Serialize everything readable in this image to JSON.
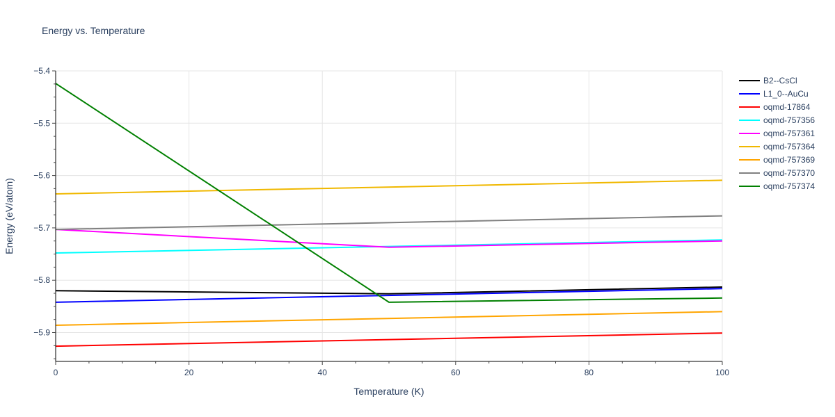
{
  "chart_data": {
    "type": "line",
    "title": "Energy vs. Temperature",
    "xlabel": "Temperature (K)",
    "ylabel": "Energy (eV/atom)",
    "xlim": [
      0,
      100
    ],
    "ylim": [
      -5.955,
      -5.4
    ],
    "x_ticks": [
      0,
      20,
      40,
      60,
      80,
      100
    ],
    "y_ticks": [
      -5.4,
      -5.5,
      -5.6,
      -5.7,
      -5.8,
      -5.9
    ],
    "x_tick_labels": [
      "0",
      "20",
      "40",
      "60",
      "80",
      "100"
    ],
    "y_tick_labels": [
      "−5.4",
      "−5.5",
      "−5.6",
      "−5.7",
      "−5.8",
      "−5.9"
    ],
    "grid": true,
    "legend_position": "right",
    "series": [
      {
        "name": "B2--CsCl",
        "color": "#000000",
        "x": [
          0,
          50,
          100
        ],
        "y": [
          -5.82,
          -5.826,
          -5.813
        ]
      },
      {
        "name": "L1_0--AuCu",
        "color": "#0000ff",
        "x": [
          0,
          100
        ],
        "y": [
          -5.842,
          -5.816
        ]
      },
      {
        "name": "oqmd-17864",
        "color": "#ff0000",
        "x": [
          0,
          100
        ],
        "y": [
          -5.926,
          -5.901
        ]
      },
      {
        "name": "oqmd-757356",
        "color": "#00ffff",
        "x": [
          0,
          100
        ],
        "y": [
          -5.748,
          -5.723
        ]
      },
      {
        "name": "oqmd-757361",
        "color": "#ff00ff",
        "x": [
          0,
          50,
          100
        ],
        "y": [
          -5.703,
          -5.737,
          -5.725
        ]
      },
      {
        "name": "oqmd-757364",
        "color": "#f0b800",
        "x": [
          0,
          100
        ],
        "y": [
          -5.635,
          -5.609
        ]
      },
      {
        "name": "oqmd-757369",
        "color": "#ffa500",
        "x": [
          0,
          100
        ],
        "y": [
          -5.886,
          -5.86
        ]
      },
      {
        "name": "oqmd-757370",
        "color": "#808080",
        "x": [
          0,
          100
        ],
        "y": [
          -5.703,
          -5.677
        ]
      },
      {
        "name": "oqmd-757374",
        "color": "#008000",
        "x": [
          0,
          50,
          100
        ],
        "y": [
          -5.424,
          -5.842,
          -5.834
        ]
      }
    ]
  },
  "legend": {
    "items": [
      {
        "label": "B2--CsCl",
        "color": "#000000"
      },
      {
        "label": "L1_0--AuCu",
        "color": "#0000ff"
      },
      {
        "label": "oqmd-17864",
        "color": "#ff0000"
      },
      {
        "label": "oqmd-757356",
        "color": "#00ffff"
      },
      {
        "label": "oqmd-757361",
        "color": "#ff00ff"
      },
      {
        "label": "oqmd-757364",
        "color": "#f0b800"
      },
      {
        "label": "oqmd-757369",
        "color": "#ffa500"
      },
      {
        "label": "oqmd-757370",
        "color": "#808080"
      },
      {
        "label": "oqmd-757374",
        "color": "#008000"
      }
    ]
  }
}
